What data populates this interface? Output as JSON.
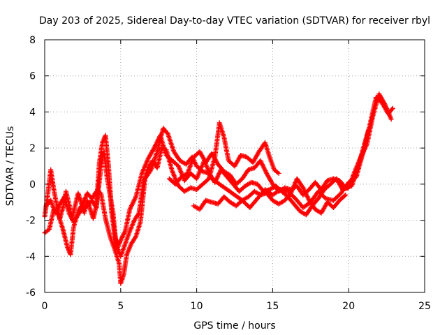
{
  "chart_data": {
    "type": "scatter",
    "title": "Day 203 of 2025, Sidereal Day-to-day VTEC variation (SDTVAR) for receiver rbyl",
    "xlabel": "GPS time / hours",
    "ylabel": "SDTVAR / TECUs",
    "xlim": [
      0,
      25
    ],
    "ylim": [
      -6,
      8
    ],
    "xticks": [
      0,
      5,
      10,
      15,
      20,
      25
    ],
    "yticks": [
      -6,
      -4,
      -2,
      0,
      2,
      4,
      6,
      8
    ],
    "grid": true,
    "marker": "+",
    "series": [
      {
        "name": "SDTVAR",
        "color": "#ff0000",
        "traces": [
          [
            [
              0.0,
              -1.8
            ],
            [
              0.2,
              -0.6
            ],
            [
              0.4,
              0.8
            ],
            [
              0.6,
              -0.3
            ],
            [
              0.8,
              -1.2
            ],
            [
              1.0,
              -1.9
            ],
            [
              1.2,
              -1.3
            ],
            [
              1.4,
              -0.4
            ],
            [
              1.6,
              -1.1
            ],
            [
              1.8,
              -1.9
            ],
            [
              2.0,
              -1.2
            ],
            [
              2.2,
              -0.5
            ],
            [
              2.4,
              -1.0
            ],
            [
              2.6,
              -1.6
            ],
            [
              2.8,
              -0.9
            ],
            [
              3.0,
              -1.4
            ],
            [
              3.2,
              -1.9
            ],
            [
              3.4,
              -1.2
            ],
            [
              3.6,
              1.2
            ],
            [
              3.8,
              2.3
            ],
            [
              4.0,
              2.7
            ],
            [
              4.2,
              1.0
            ],
            [
              4.4,
              -1.5
            ],
            [
              4.6,
              -2.8
            ],
            [
              4.8,
              -3.5
            ],
            [
              5.0,
              -3.1
            ],
            [
              5.3,
              -2.6
            ],
            [
              5.6,
              -1.4
            ],
            [
              6.0,
              -0.7
            ],
            [
              6.4,
              0.6
            ],
            [
              6.8,
              1.4
            ],
            [
              7.2,
              2.0
            ],
            [
              7.6,
              2.7
            ],
            [
              8.0,
              1.6
            ],
            [
              8.4,
              1.3
            ],
            [
              8.8,
              1.0
            ],
            [
              9.2,
              0.2
            ],
            [
              9.6,
              0.6
            ],
            [
              10.0,
              0.3
            ],
            [
              10.5,
              1.3
            ],
            [
              11.0,
              0.3
            ],
            [
              11.5,
              0.0
            ],
            [
              12.0,
              -0.3
            ],
            [
              12.5,
              -0.6
            ],
            [
              13.0,
              -0.9
            ],
            [
              13.5,
              -1.3
            ],
            [
              14.0,
              -0.8
            ],
            [
              14.5,
              -0.3
            ],
            [
              15.0,
              -0.6
            ],
            [
              15.5,
              -0.3
            ],
            [
              16.0,
              -0.4
            ],
            [
              16.5,
              -0.8
            ],
            [
              17.0,
              -1.3
            ],
            [
              17.5,
              -1.0
            ],
            [
              18.0,
              -0.4
            ],
            [
              18.5,
              -0.8
            ],
            [
              19.0,
              -0.9
            ],
            [
              19.5,
              -0.5
            ],
            [
              20.0,
              0.1
            ],
            [
              20.5,
              0.4
            ],
            [
              21.0,
              1.9
            ],
            [
              21.4,
              3.3
            ],
            [
              21.8,
              4.8
            ],
            [
              22.2,
              4.5
            ],
            [
              22.6,
              3.9
            ],
            [
              22.9,
              4.2
            ]
          ],
          [
            [
              0.0,
              -2.7
            ],
            [
              0.3,
              -2.5
            ],
            [
              0.6,
              -1.4
            ],
            [
              0.9,
              -1.7
            ],
            [
              1.2,
              -2.5
            ],
            [
              1.5,
              -3.5
            ],
            [
              1.7,
              -3.9
            ],
            [
              1.9,
              -2.4
            ],
            [
              2.2,
              -1.5
            ],
            [
              2.5,
              -1.1
            ],
            [
              2.8,
              -0.5
            ],
            [
              3.1,
              -0.8
            ],
            [
              3.4,
              -0.4
            ],
            [
              3.7,
              -0.5
            ],
            [
              4.0,
              -1.9
            ],
            [
              4.3,
              -2.9
            ],
            [
              4.6,
              -3.6
            ],
            [
              4.9,
              -4.4
            ],
            [
              5.0,
              -5.5
            ],
            [
              5.2,
              -5.0
            ],
            [
              5.4,
              -3.9
            ],
            [
              5.7,
              -3.3
            ],
            [
              6.0,
              -2.9
            ],
            [
              6.3,
              -2.1
            ],
            [
              6.6,
              0.3
            ],
            [
              7.0,
              0.8
            ],
            [
              7.4,
              1.8
            ],
            [
              7.8,
              3.1
            ],
            [
              8.1,
              2.8
            ],
            [
              8.5,
              1.8
            ],
            [
              8.9,
              1.3
            ],
            [
              9.3,
              1.1
            ],
            [
              9.7,
              1.5
            ],
            [
              10.0,
              1.0
            ],
            [
              10.4,
              0.7
            ],
            [
              10.8,
              0.6
            ],
            [
              11.2,
              0.1
            ],
            [
              11.6,
              0.8
            ],
            [
              12.0,
              0.4
            ],
            [
              12.4,
              0.0
            ],
            [
              12.8,
              -0.4
            ],
            [
              13.2,
              -0.1
            ],
            [
              13.6,
              0.1
            ],
            [
              14.0,
              0.0
            ],
            [
              14.4,
              -0.4
            ],
            [
              14.8,
              -0.3
            ],
            [
              15.2,
              -0.1
            ],
            [
              15.6,
              -0.4
            ],
            [
              16.0,
              -0.7
            ],
            [
              16.4,
              -1.1
            ],
            [
              16.8,
              -1.5
            ],
            [
              17.2,
              -1.7
            ],
            [
              17.6,
              -1.2
            ],
            [
              18.0,
              -0.8
            ],
            [
              18.4,
              -0.3
            ],
            [
              18.8,
              0.0
            ],
            [
              19.2,
              0.3
            ],
            [
              19.6,
              -0.3
            ],
            [
              20.0,
              -0.2
            ],
            [
              20.4,
              0.7
            ],
            [
              20.8,
              1.5
            ],
            [
              21.2,
              2.2
            ],
            [
              21.6,
              3.8
            ],
            [
              22.0,
              5.0
            ],
            [
              22.4,
              4.4
            ],
            [
              22.8,
              3.6
            ]
          ],
          [
            [
              0.1,
              -1.2
            ],
            [
              0.4,
              -0.9
            ],
            [
              0.7,
              -1.6
            ],
            [
              1.0,
              -1.1
            ],
            [
              1.3,
              -0.7
            ],
            [
              1.6,
              -1.6
            ],
            [
              1.9,
              -2.1
            ],
            [
              2.2,
              -1.7
            ],
            [
              2.5,
              -1.3
            ],
            [
              2.8,
              -1.2
            ],
            [
              3.1,
              -0.9
            ],
            [
              3.4,
              -1.3
            ],
            [
              3.7,
              0.9
            ],
            [
              3.9,
              1.8
            ],
            [
              4.1,
              0.4
            ],
            [
              4.3,
              -0.6
            ],
            [
              4.5,
              -1.6
            ],
            [
              4.7,
              -3.4
            ],
            [
              5.0,
              -4.0
            ],
            [
              5.3,
              -3.3
            ],
            [
              5.6,
              -2.6
            ],
            [
              5.9,
              -2.0
            ],
            [
              6.2,
              -1.6
            ],
            [
              6.5,
              0.1
            ],
            [
              6.8,
              0.9
            ],
            [
              7.1,
              1.3
            ],
            [
              7.4,
              0.9
            ],
            [
              7.7,
              2.0
            ],
            [
              8.0,
              1.9
            ],
            [
              8.4,
              0.7
            ],
            [
              8.8,
              -0.1
            ],
            [
              9.2,
              -0.4
            ],
            [
              9.6,
              -0.2
            ],
            [
              10.0,
              -0.3
            ],
            [
              10.4,
              0.0
            ],
            [
              10.8,
              0.3
            ],
            [
              11.2,
              1.5
            ],
            [
              11.5,
              3.4
            ],
            [
              11.8,
              2.6
            ],
            [
              12.1,
              1.3
            ],
            [
              12.5,
              1.0
            ],
            [
              12.9,
              1.6
            ],
            [
              13.3,
              1.5
            ],
            [
              13.7,
              1.2
            ],
            [
              14.1,
              1.8
            ],
            [
              14.5,
              2.3
            ],
            [
              14.8,
              1.5
            ],
            [
              15.1,
              0.8
            ],
            [
              15.4,
              0.6
            ]
          ],
          [
            [
              9.8,
              -1.2
            ],
            [
              10.2,
              -1.4
            ],
            [
              10.6,
              -0.9
            ],
            [
              11.0,
              -1.0
            ],
            [
              11.4,
              -1.1
            ],
            [
              11.8,
              -0.7
            ],
            [
              12.2,
              -1.0
            ],
            [
              12.6,
              -1.2
            ],
            [
              13.0,
              -0.9
            ],
            [
              13.4,
              -0.7
            ],
            [
              13.8,
              -0.4
            ],
            [
              14.2,
              -0.6
            ],
            [
              14.6,
              -0.5
            ],
            [
              15.0,
              -0.9
            ],
            [
              15.4,
              -1.1
            ],
            [
              15.8,
              -0.9
            ],
            [
              16.2,
              -0.5
            ],
            [
              16.6,
              0.3
            ],
            [
              17.0,
              -0.2
            ],
            [
              17.4,
              -0.9
            ],
            [
              17.8,
              -1.4
            ],
            [
              18.2,
              -1.6
            ],
            [
              18.6,
              -1.0
            ],
            [
              19.0,
              -1.3
            ],
            [
              19.4,
              -0.9
            ],
            [
              19.8,
              -0.6
            ]
          ],
          [
            [
              8.2,
              0.3
            ],
            [
              8.6,
              0.0
            ],
            [
              9.0,
              0.4
            ],
            [
              9.4,
              0.6
            ],
            [
              9.8,
              1.5
            ],
            [
              10.2,
              1.8
            ],
            [
              10.6,
              1.2
            ],
            [
              11.0,
              1.7
            ],
            [
              11.4,
              1.1
            ],
            [
              11.8,
              0.7
            ],
            [
              12.2,
              0.5
            ],
            [
              12.6,
              0.0
            ],
            [
              13.0,
              0.3
            ],
            [
              13.4,
              0.8
            ],
            [
              13.8,
              0.9
            ],
            [
              14.2,
              1.3
            ],
            [
              14.6,
              0.6
            ],
            [
              15.0,
              0.0
            ],
            [
              15.4,
              -0.4
            ],
            [
              15.8,
              -0.2
            ],
            [
              16.2,
              -0.3
            ],
            [
              16.6,
              -0.1
            ],
            [
              17.0,
              -0.6
            ],
            [
              17.4,
              -0.3
            ],
            [
              17.8,
              0.1
            ],
            [
              18.2,
              -0.3
            ],
            [
              18.6,
              0.2
            ],
            [
              19.0,
              0.3
            ],
            [
              19.4,
              0.2
            ],
            [
              19.8,
              -0.2
            ],
            [
              20.2,
              -0.1
            ],
            [
              20.6,
              0.9
            ],
            [
              21.0,
              2.1
            ],
            [
              21.3,
              3.0
            ]
          ]
        ]
      }
    ]
  }
}
